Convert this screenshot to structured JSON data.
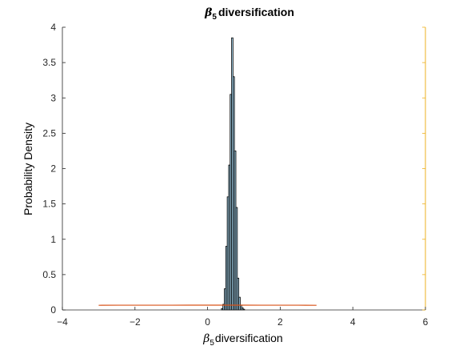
{
  "chart_data": {
    "type": "bar",
    "title": {
      "symbol": "β",
      "subscript": "5",
      "text": "diversification"
    },
    "xlabel": {
      "symbol": "β",
      "subscript": "5",
      "text": "diversification"
    },
    "ylabel": "Probability Density",
    "xlim": [
      -4,
      6
    ],
    "ylim": [
      0,
      4
    ],
    "xticks": [
      "-4",
      "-2",
      "0",
      "2",
      "4",
      "6"
    ],
    "yticks": [
      "0",
      "0.5",
      "1",
      "1.5",
      "2",
      "2.5",
      "3",
      "3.5",
      "4"
    ],
    "grid": false,
    "histogram": {
      "bin_width": 0.04,
      "bin_starts": [
        0.38,
        0.42,
        0.46,
        0.5,
        0.54,
        0.58,
        0.62,
        0.66,
        0.7,
        0.74,
        0.78,
        0.82,
        0.86,
        0.9,
        0.94,
        0.98
      ],
      "density": [
        0.02,
        0.08,
        0.3,
        0.9,
        1.6,
        2.05,
        3.05,
        3.85,
        3.3,
        2.25,
        1.45,
        0.45,
        0.18,
        0.07,
        0.03,
        0.01
      ],
      "color": "#9ecae1"
    },
    "prior_line": {
      "x": [
        -3,
        -2.5,
        -2,
        -1.5,
        -1,
        -0.5,
        0,
        0.5,
        1,
        1.5,
        2,
        2.5,
        3
      ],
      "y": [
        0.066,
        0.067,
        0.067,
        0.067,
        0.067,
        0.068,
        0.068,
        0.068,
        0.068,
        0.067,
        0.067,
        0.067,
        0.066
      ],
      "color": "#d95319"
    },
    "right_axis_color": "#edb120"
  }
}
